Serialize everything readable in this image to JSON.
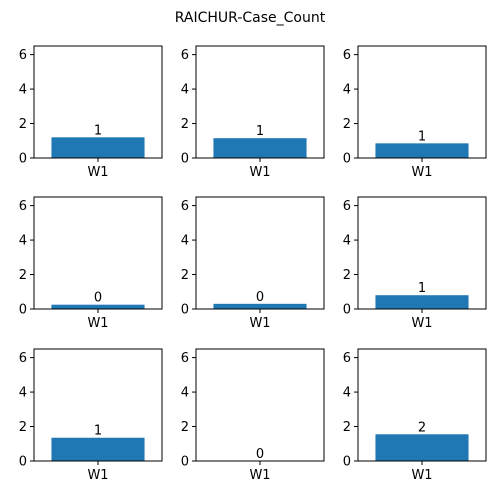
{
  "figure": {
    "title": "RAICHUR-Case_Count",
    "bar_color": "#1f77b4"
  },
  "chart_data": [
    {
      "type": "bar",
      "categories": [
        "W1"
      ],
      "values": [
        1.2
      ],
      "data_labels": [
        "1"
      ],
      "yticks": [
        0,
        2,
        4,
        6
      ],
      "ylim": [
        0,
        6.5
      ]
    },
    {
      "type": "bar",
      "categories": [
        "W1"
      ],
      "values": [
        1.15
      ],
      "data_labels": [
        "1"
      ],
      "yticks": [
        0,
        2,
        4,
        6
      ],
      "ylim": [
        0,
        6.5
      ]
    },
    {
      "type": "bar",
      "categories": [
        "W1"
      ],
      "values": [
        0.85
      ],
      "data_labels": [
        "1"
      ],
      "yticks": [
        0,
        2,
        4,
        6
      ],
      "ylim": [
        0,
        6.5
      ]
    },
    {
      "type": "bar",
      "categories": [
        "W1"
      ],
      "values": [
        0.25
      ],
      "data_labels": [
        "0"
      ],
      "yticks": [
        0,
        2,
        4,
        6
      ],
      "ylim": [
        0,
        6.5
      ]
    },
    {
      "type": "bar",
      "categories": [
        "W1"
      ],
      "values": [
        0.3
      ],
      "data_labels": [
        "0"
      ],
      "yticks": [
        0,
        2,
        4,
        6
      ],
      "ylim": [
        0,
        6.5
      ]
    },
    {
      "type": "bar",
      "categories": [
        "W1"
      ],
      "values": [
        0.8
      ],
      "data_labels": [
        "1"
      ],
      "yticks": [
        0,
        2,
        4,
        6
      ],
      "ylim": [
        0,
        6.5
      ]
    },
    {
      "type": "bar",
      "categories": [
        "W1"
      ],
      "values": [
        1.35
      ],
      "data_labels": [
        "1"
      ],
      "yticks": [
        0,
        2,
        4,
        6
      ],
      "ylim": [
        0,
        6.5
      ]
    },
    {
      "type": "bar",
      "categories": [
        "W1"
      ],
      "values": [
        0.0
      ],
      "data_labels": [
        "0"
      ],
      "yticks": [
        0,
        2,
        4,
        6
      ],
      "ylim": [
        0,
        6.5
      ]
    },
    {
      "type": "bar",
      "categories": [
        "W1"
      ],
      "values": [
        1.55
      ],
      "data_labels": [
        "2"
      ],
      "yticks": [
        0,
        2,
        4,
        6
      ],
      "ylim": [
        0,
        6.5
      ]
    }
  ]
}
